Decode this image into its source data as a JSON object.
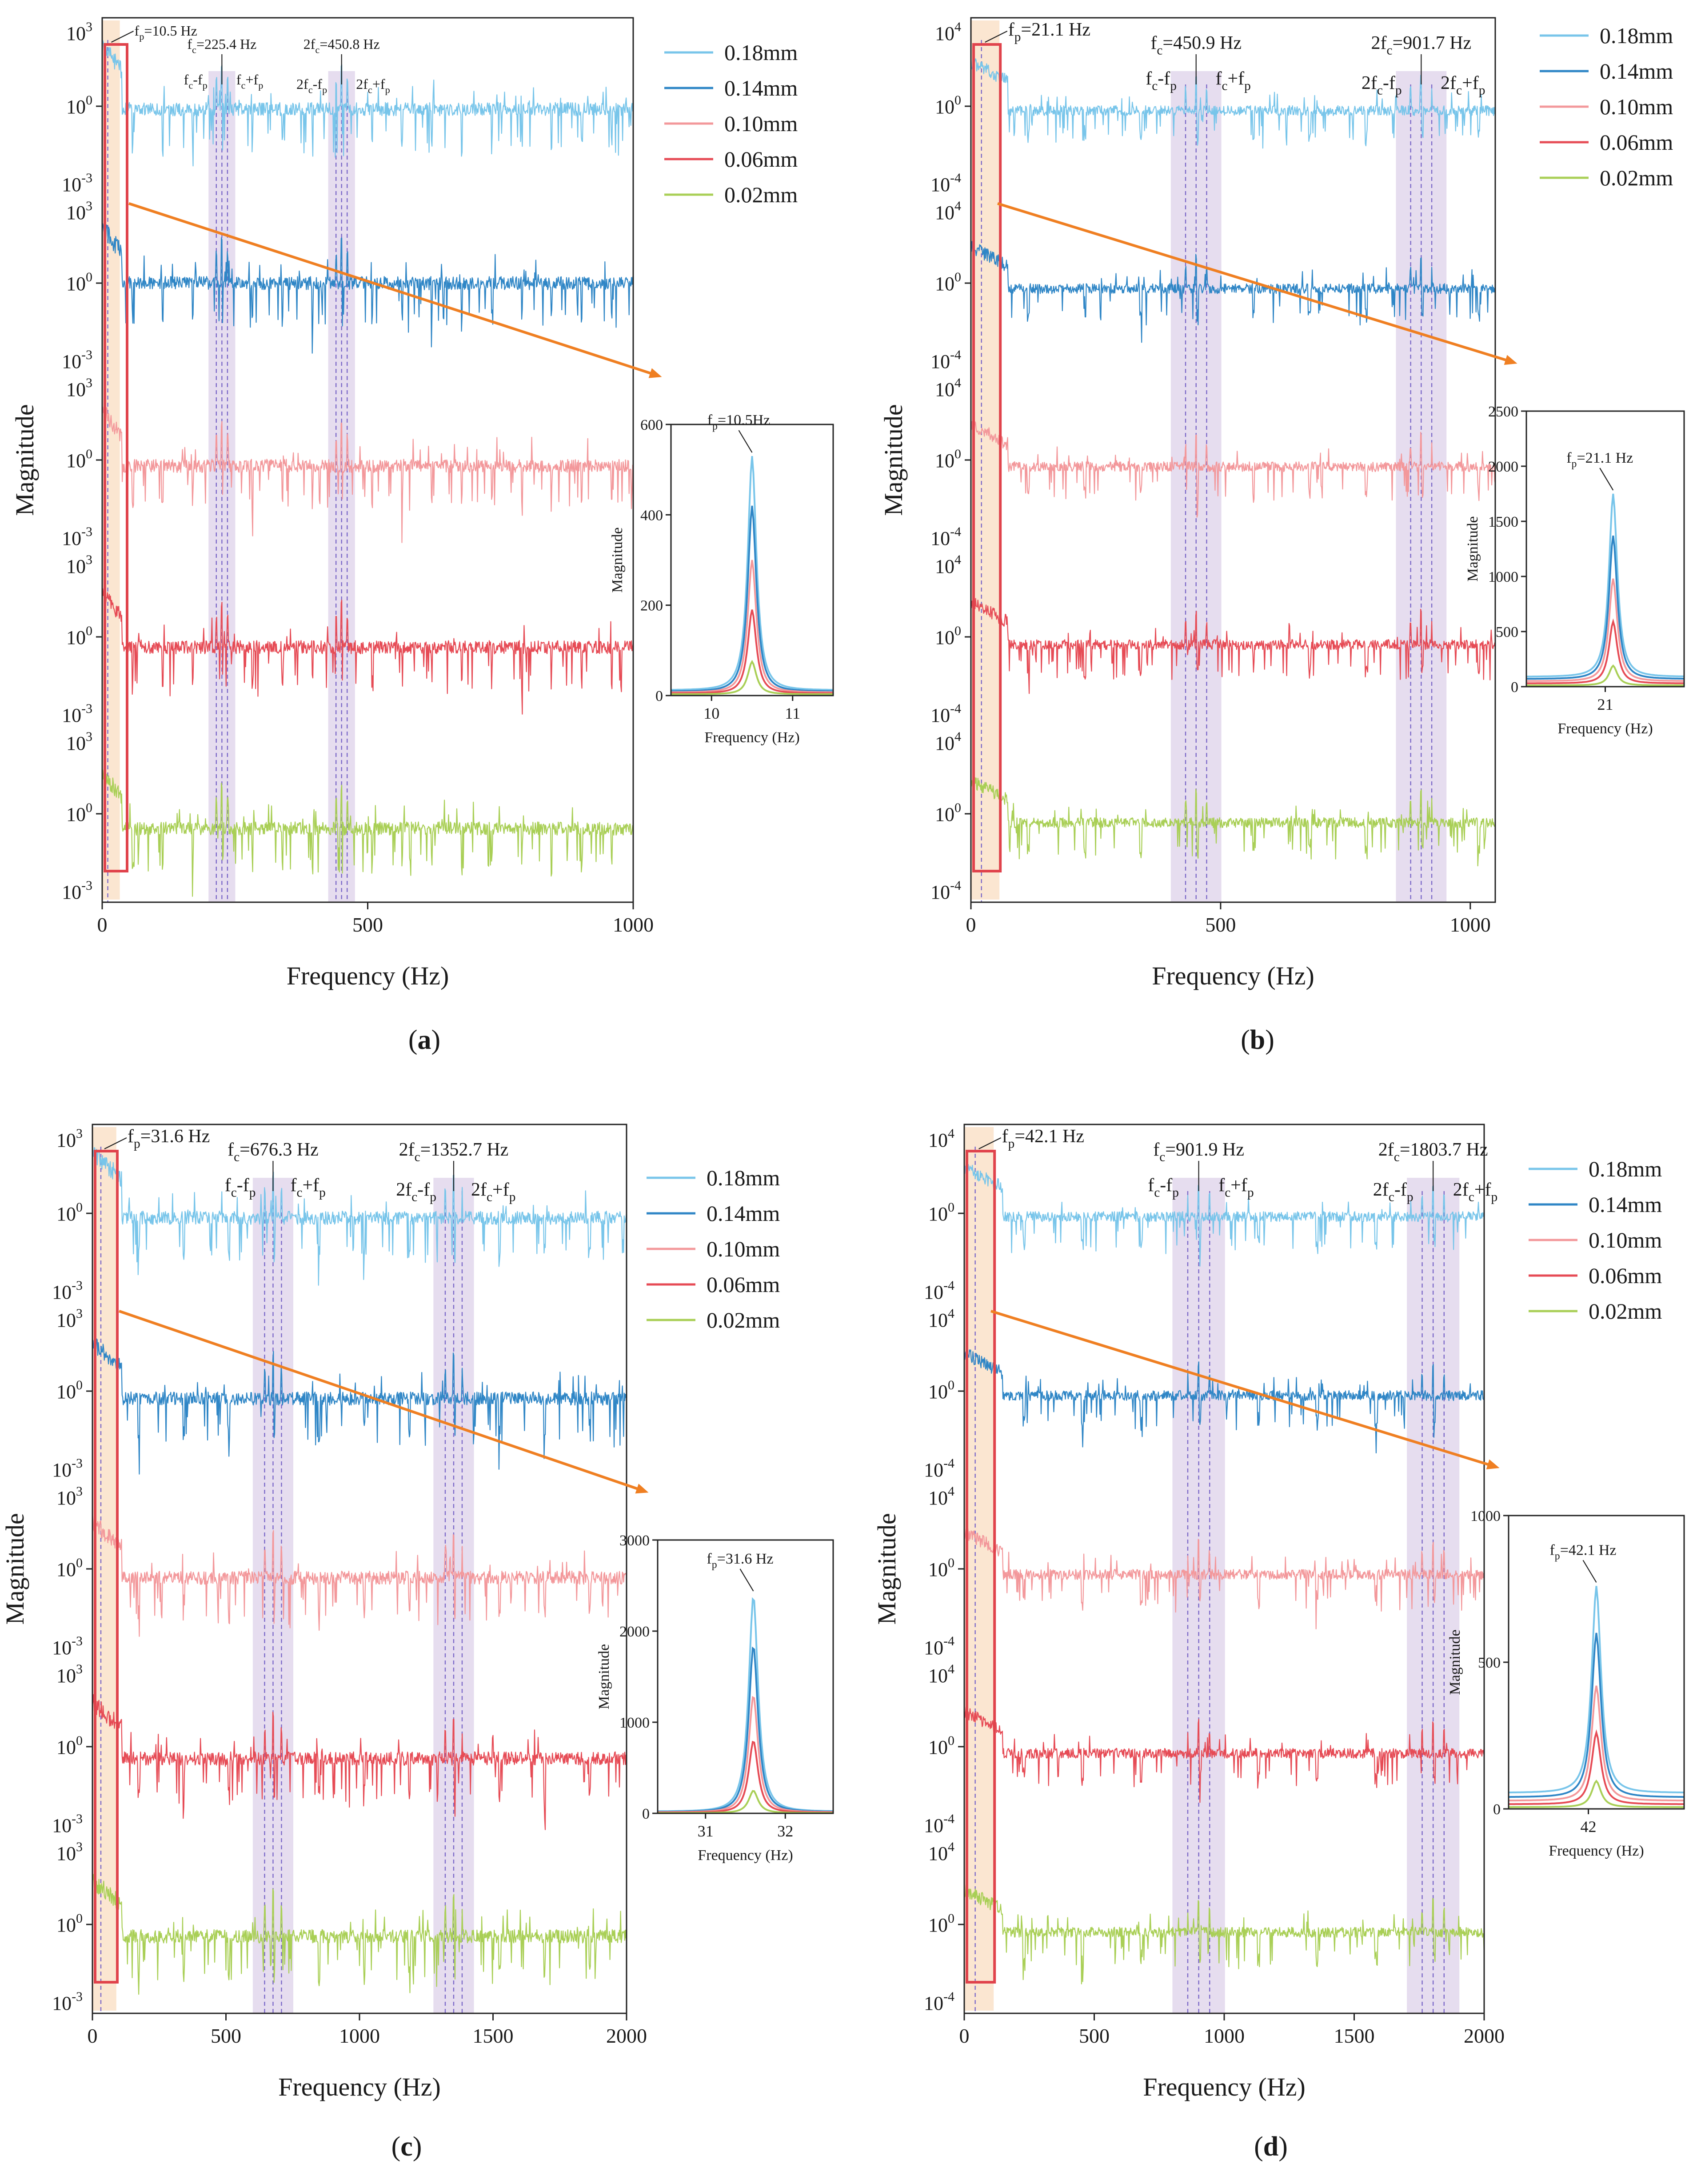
{
  "chart_data": [
    {
      "id": "a",
      "type": "line",
      "panel_label": "(a)",
      "xlabel": "Frequency (Hz)",
      "ylabel": "Magnitude",
      "xlim": [
        0,
        1000
      ],
      "x_ticks": [
        {
          "v": 0,
          "t": "0"
        },
        {
          "v": 500,
          "t": "500"
        },
        {
          "v": 1000,
          "t": "1000"
        }
      ],
      "y_scale": "log",
      "y_decades": {
        "top": "3",
        "bottom": "-3"
      },
      "y_scale_labels": [
        "10^3",
        "10^0",
        "10^-3"
      ],
      "legend": [
        "0.18mm",
        "0.14mm",
        "0.10mm",
        "0.06mm",
        "0.02mm"
      ],
      "series_colors": [
        "#78c5ea",
        "#2f86c6",
        "#f3989b",
        "#e64b55",
        "#a9cf56"
      ],
      "fp_hz": 10.5,
      "fc_hz": 225.4,
      "two_fc_hz": 450.8,
      "annotations": {
        "fp": "fp=10.5 Hz",
        "fc": "fc=225.4 Hz",
        "two_fc": "2fc=450.8 Hz",
        "fc_minus": "fc-fp",
        "fc_plus": "fc+fp",
        "two_fc_minus": "2fc-fp",
        "two_fc_plus": "2fc+fp"
      },
      "baseline_log10": [
        -0.1,
        0.0,
        -0.2,
        -0.35,
        -0.5
      ],
      "inset": {
        "xlabel": "Frequency (Hz)",
        "ylabel": "Magnitude",
        "xlim": [
          9.5,
          11.5
        ],
        "ylim": [
          0,
          600
        ],
        "x_ticks": [
          10,
          11
        ],
        "y_ticks": [
          0,
          200,
          400,
          600
        ],
        "label": "fp=10.5Hz",
        "peak_x": 10.5,
        "peaks": [
          530,
          420,
          300,
          190,
          75
        ],
        "floors": [
          12,
          9,
          7,
          5,
          3
        ]
      }
    },
    {
      "id": "b",
      "type": "line",
      "panel_label": "(b)",
      "xlabel": "Frequency (Hz)",
      "ylabel": "Magnitude",
      "xlim": [
        0,
        1050
      ],
      "x_ticks": [
        {
          "v": 0,
          "t": "0"
        },
        {
          "v": 500,
          "t": "500"
        },
        {
          "v": 1000,
          "t": "1000"
        }
      ],
      "y_scale": "log",
      "y_decades": {
        "top": "4",
        "bottom": "-4"
      },
      "y_scale_labels": [
        "10^4",
        "10^0",
        "10^-4"
      ],
      "legend": [
        "0.18mm",
        "0.14mm",
        "0.10mm",
        "0.06mm",
        "0.02mm"
      ],
      "series_colors": [
        "#78c5ea",
        "#2f86c6",
        "#f3989b",
        "#e64b55",
        "#a9cf56"
      ],
      "fp_hz": 21.1,
      "fc_hz": 450.9,
      "two_fc_hz": 901.7,
      "annotations": {
        "fp": "fp=21.1 Hz",
        "fc": "fc=450.9 Hz",
        "two_fc": "2fc=901.7 Hz",
        "fc_minus": "fc-fp",
        "fc_plus": "fc+fp",
        "two_fc_minus": "2fc-fp",
        "two_fc_plus": "2fc+fp"
      },
      "baseline_log10": [
        -0.2,
        -0.25,
        -0.3,
        -0.35,
        -0.4
      ],
      "inset": {
        "xlabel": "Frequency (Hz)",
        "ylabel": "Magnitude",
        "xlim": [
          20.0,
          22.0
        ],
        "ylim": [
          0,
          2500
        ],
        "x_ticks": [
          21
        ],
        "y_ticks": [
          0,
          500,
          1000,
          1500,
          2000,
          2500
        ],
        "label": "fp=21.1 Hz",
        "peak_x": 21.1,
        "peaks": [
          1750,
          1370,
          980,
          590,
          190
        ],
        "floors": [
          90,
          70,
          50,
          30,
          12
        ]
      }
    },
    {
      "id": "c",
      "type": "line",
      "panel_label": "(c)",
      "xlabel": "Frequency (Hz)",
      "ylabel": "Magnitude",
      "xlim": [
        0,
        2000
      ],
      "x_ticks": [
        {
          "v": 0,
          "t": "0"
        },
        {
          "v": 500,
          "t": "500"
        },
        {
          "v": 1000,
          "t": "1000"
        },
        {
          "v": 1500,
          "t": "1500"
        },
        {
          "v": 2000,
          "t": "2000"
        }
      ],
      "y_scale": "log",
      "y_decades": {
        "top": "3",
        "bottom": "-3"
      },
      "y_scale_labels": [
        "10^3",
        "10^0",
        "10^-3"
      ],
      "legend": [
        "0.18mm",
        "0.14mm",
        "0.10mm",
        "0.06mm",
        "0.02mm"
      ],
      "series_colors": [
        "#78c5ea",
        "#2f86c6",
        "#f3989b",
        "#e64b55",
        "#a9cf56"
      ],
      "fp_hz": 31.6,
      "fc_hz": 676.3,
      "two_fc_hz": 1352.7,
      "annotations": {
        "fp": "fp=31.6 Hz",
        "fc": "fc=676.3 Hz",
        "two_fc": "2fc=1352.7 Hz",
        "fc_minus": "fc-fp",
        "fc_plus": "fc+fp",
        "two_fc_minus": "2fc-fp",
        "two_fc_plus": "2fc+fp"
      },
      "baseline_log10": [
        -0.15,
        -0.25,
        -0.3,
        -0.4,
        -0.4
      ],
      "inset": {
        "xlabel": "Frequency (Hz)",
        "ylabel": "Magnitude",
        "xlim": [
          30.4,
          32.6
        ],
        "ylim": [
          0,
          3000
        ],
        "x_ticks": [
          31,
          32
        ],
        "y_ticks": [
          0,
          1000,
          2000,
          3000
        ],
        "label": "fp=31.6 Hz",
        "peak_x": 31.6,
        "peaks": [
          2400,
          1850,
          1300,
          800,
          250
        ],
        "floors": [
          20,
          16,
          12,
          8,
          4
        ]
      }
    },
    {
      "id": "d",
      "type": "line",
      "panel_label": "(d)",
      "xlabel": "Frequency (Hz)",
      "ylabel": "Magnitude",
      "xlim": [
        0,
        2000
      ],
      "x_ticks": [
        {
          "v": 0,
          "t": "0"
        },
        {
          "v": 500,
          "t": "500"
        },
        {
          "v": 1000,
          "t": "1000"
        },
        {
          "v": 1500,
          "t": "1500"
        },
        {
          "v": 2000,
          "t": "2000"
        }
      ],
      "y_scale": "log",
      "y_decades": {
        "top": "4",
        "bottom": "-4"
      },
      "y_scale_labels": [
        "10^4",
        "10^0",
        "10^-4"
      ],
      "legend": [
        "0.18mm",
        "0.14mm",
        "0.10mm",
        "0.06mm",
        "0.02mm"
      ],
      "series_colors": [
        "#78c5ea",
        "#2f86c6",
        "#f3989b",
        "#e64b55",
        "#a9cf56"
      ],
      "fp_hz": 42.1,
      "fc_hz": 901.9,
      "two_fc_hz": 1803.7,
      "annotations": {
        "fp": "fp=42.1 Hz",
        "fc": "fc=901.9 Hz",
        "two_fc": "2fc=1803.7 Hz",
        "fc_minus": "fc-fp",
        "fc_plus": "fc+fp",
        "two_fc_minus": "2fc-fp",
        "two_fc_plus": "2fc+fp"
      },
      "baseline_log10": [
        -0.15,
        -0.2,
        -0.25,
        -0.3,
        -0.35
      ],
      "inset": {
        "xlabel": "Frequency (Hz)",
        "ylabel": "Magnitude",
        "xlim": [
          41.0,
          43.2
        ],
        "ylim": [
          0,
          1000
        ],
        "x_ticks": [
          42
        ],
        "y_ticks": [
          0,
          500,
          1000
        ],
        "label": "fp=42.1 Hz",
        "peak_x": 42.1,
        "peaks": [
          760,
          600,
          420,
          260,
          95
        ],
        "floors": [
          55,
          40,
          28,
          16,
          6
        ]
      }
    }
  ]
}
